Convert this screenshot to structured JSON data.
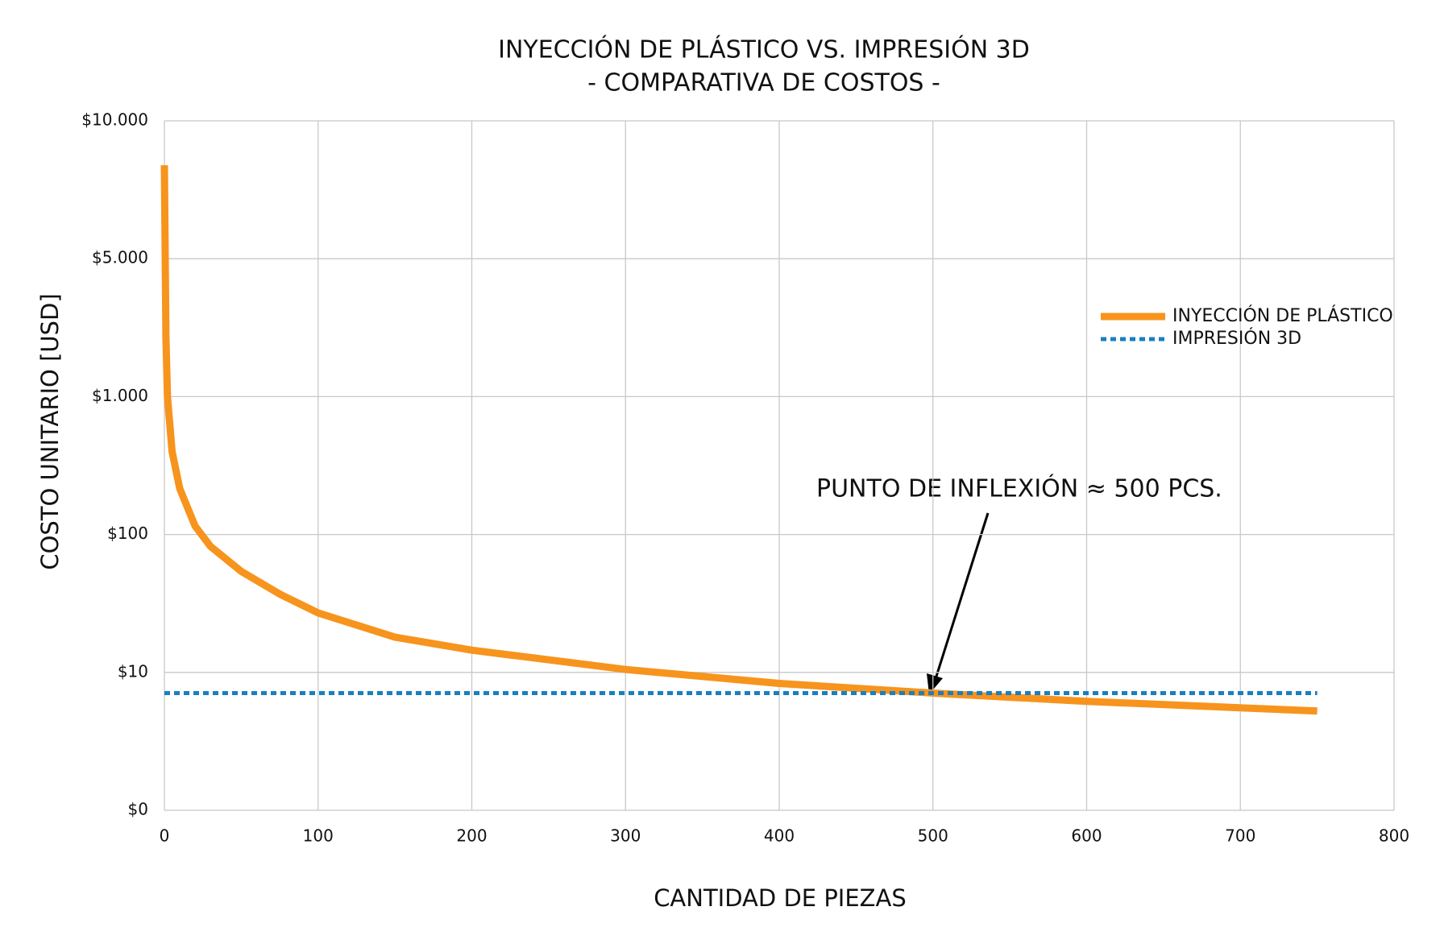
{
  "chart_data": {
    "type": "line",
    "title": "INYECCIÓN DE PLÁSTICO VS. IMPRESIÓN 3D",
    "subtitle": "- COMPARATIVA DE COSTOS -",
    "x_label": "CANTIDAD DE PIEZAS",
    "y_label": "COSTO UNITARIO [USD]",
    "annotation": "PUNTO DE INFLEXIÓN ≈ 500 PCS.",
    "xlim": [
      0,
      800
    ],
    "xticks": [
      0,
      100,
      200,
      300,
      400,
      500,
      600,
      700,
      800
    ],
    "ylim": [
      0,
      10000
    ],
    "yticks": [
      {
        "value": 0,
        "label": "$0"
      },
      {
        "value": 10,
        "label": "$10"
      },
      {
        "value": 100,
        "label": "$100"
      },
      {
        "value": 1000,
        "label": "$1.000"
      },
      {
        "value": 5000,
        "label": "$5.000"
      },
      {
        "value": 10000,
        "label": "$10.000"
      }
    ],
    "grid": true,
    "legend": "right",
    "series": [
      {
        "name": "INYECCIÓN DE PLÁSTICO",
        "color": "#f7941d",
        "dashed": false,
        "x": [
          0,
          1,
          2,
          5,
          10,
          20,
          30,
          50,
          75,
          100,
          150,
          200,
          300,
          400,
          500,
          600,
          750
        ],
        "values": [
          8000,
          2000,
          1000,
          400,
          215,
          115,
          82,
          54,
          37,
          27,
          18,
          14.5,
          10.5,
          9.2,
          8.5,
          7.9,
          7.2
        ]
      },
      {
        "name": "IMPRESIÓN 3D",
        "color": "#1a7fc0",
        "dashed": true,
        "x": [
          0,
          750
        ],
        "values": [
          8.5,
          8.5
        ]
      }
    ]
  }
}
